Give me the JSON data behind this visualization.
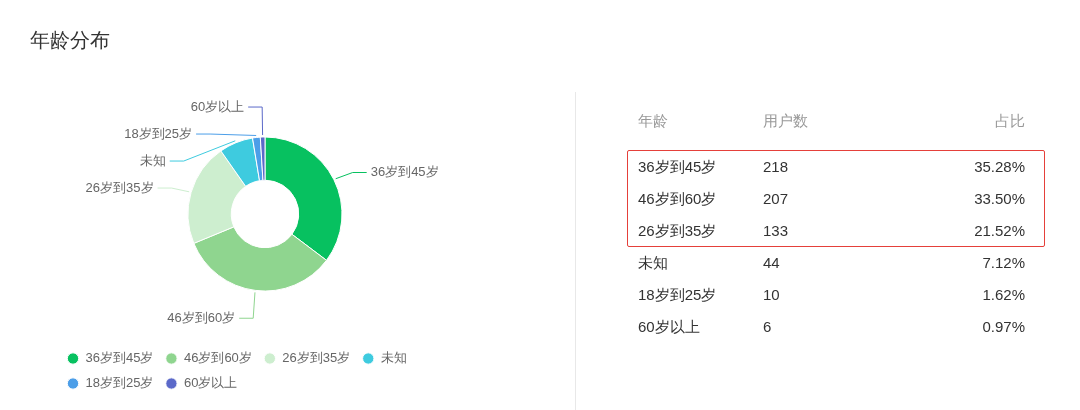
{
  "chart_data": [
    {
      "type": "donut",
      "title": "年龄分布",
      "categories": [
        "36岁到45岁",
        "46岁到60岁",
        "26岁到35岁",
        "未知",
        "18岁到25岁",
        "60岁以上"
      ],
      "values": [
        35.28,
        33.5,
        21.52,
        7.12,
        1.62,
        0.97
      ],
      "colors": [
        "#07c160",
        "#8fd58f",
        "#cdeecf",
        "#3ecbdf",
        "#4c9ee8",
        "#5b69c9"
      ],
      "legend": "bottom left"
    },
    {
      "type": "other",
      "categories": [
        "36岁到45岁",
        "46岁到60岁",
        "26岁到35岁",
        "未知",
        "18岁到25岁",
        "60岁以上"
      ],
      "values": [
        218,
        207,
        133,
        44,
        10,
        6
      ],
      "data_labels": true,
      "annotations": [
        "年龄",
        "用户数"
      ]
    },
    {
      "type": "other",
      "value_labels": [
        "35.28%",
        "33.50%",
        "21.52%",
        "7.12%",
        "1.62%",
        "0.97%"
      ],
      "annotations": [
        "占比"
      ]
    }
  ]
}
